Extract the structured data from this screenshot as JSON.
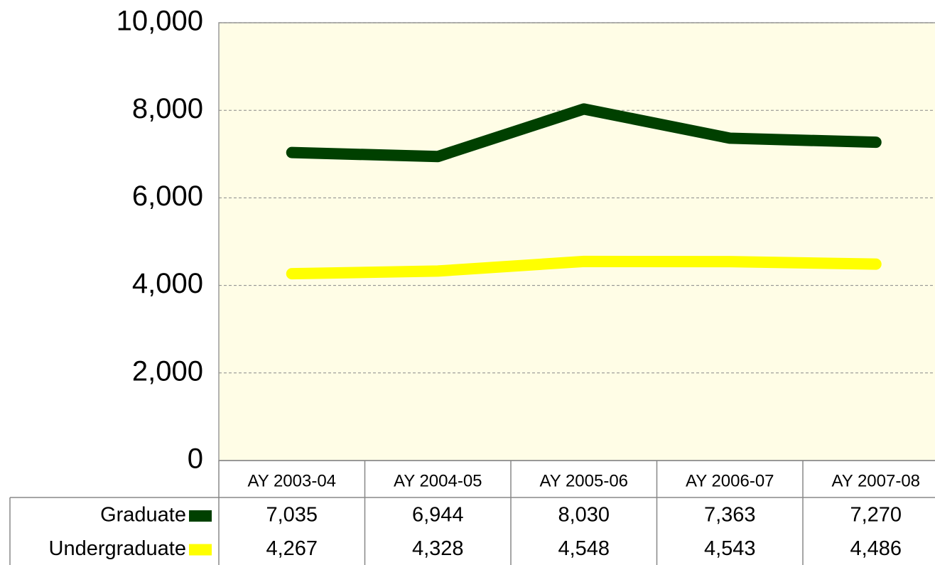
{
  "chart_data": {
    "type": "line",
    "categories": [
      "AY 2003-04",
      "AY 2004-05",
      "AY 2005-06",
      "AY 2006-07",
      "AY 2007-08"
    ],
    "series": [
      {
        "name": "Graduate",
        "color": "#004000",
        "values": [
          7035,
          6944,
          8030,
          7363,
          7270
        ],
        "value_labels": [
          "7,035",
          "6,944",
          "8,030",
          "7,363",
          "7,270"
        ]
      },
      {
        "name": "Undergraduate",
        "color": "#ffff00",
        "values": [
          4267,
          4328,
          4548,
          4543,
          4486
        ],
        "value_labels": [
          "4,267",
          "4,328",
          "4,548",
          "4,543",
          "4,486"
        ]
      }
    ],
    "ylim": [
      0,
      10000
    ],
    "yticks": [
      0,
      {
        "value": 2000,
        "label": "2,000"
      },
      {
        "value": 4000,
        "label": "4,000"
      },
      {
        "value": 6000,
        "label": "6,000"
      },
      {
        "value": 8000,
        "label": "8,000"
      },
      {
        "value": 10000,
        "label": "10,000"
      }
    ],
    "grid": true,
    "background": "#fffde6"
  }
}
